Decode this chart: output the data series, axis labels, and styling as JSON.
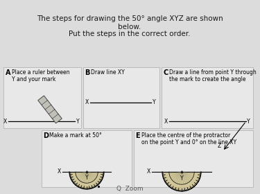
{
  "title_line1": "The steps for drawing the 50° angle XYZ are shown",
  "title_line2": "below.",
  "title_line3": "Put the steps in the correct order.",
  "bg_color": "#dcdcdc",
  "panel_bg": "#e8e8e8",
  "text_color": "#1a1a1a",
  "steps": [
    {
      "label": "A",
      "desc": "Place a ruler between\nY and your mark"
    },
    {
      "label": "B",
      "desc": "Draw line XY"
    },
    {
      "label": "C",
      "desc": "Draw a line from point Y through\nthe mark to create the angle"
    },
    {
      "label": "D",
      "desc": "Make a mark at 50°"
    },
    {
      "label": "E",
      "desc": "Place the centre of the protractor\non the point Y and 0° on the line XY"
    }
  ],
  "panels": {
    "A": [
      5,
      97,
      112,
      88
    ],
    "B": [
      120,
      97,
      110,
      88
    ],
    "C": [
      233,
      97,
      132,
      88
    ],
    "D": [
      60,
      188,
      130,
      82
    ],
    "E": [
      193,
      188,
      172,
      82
    ]
  }
}
